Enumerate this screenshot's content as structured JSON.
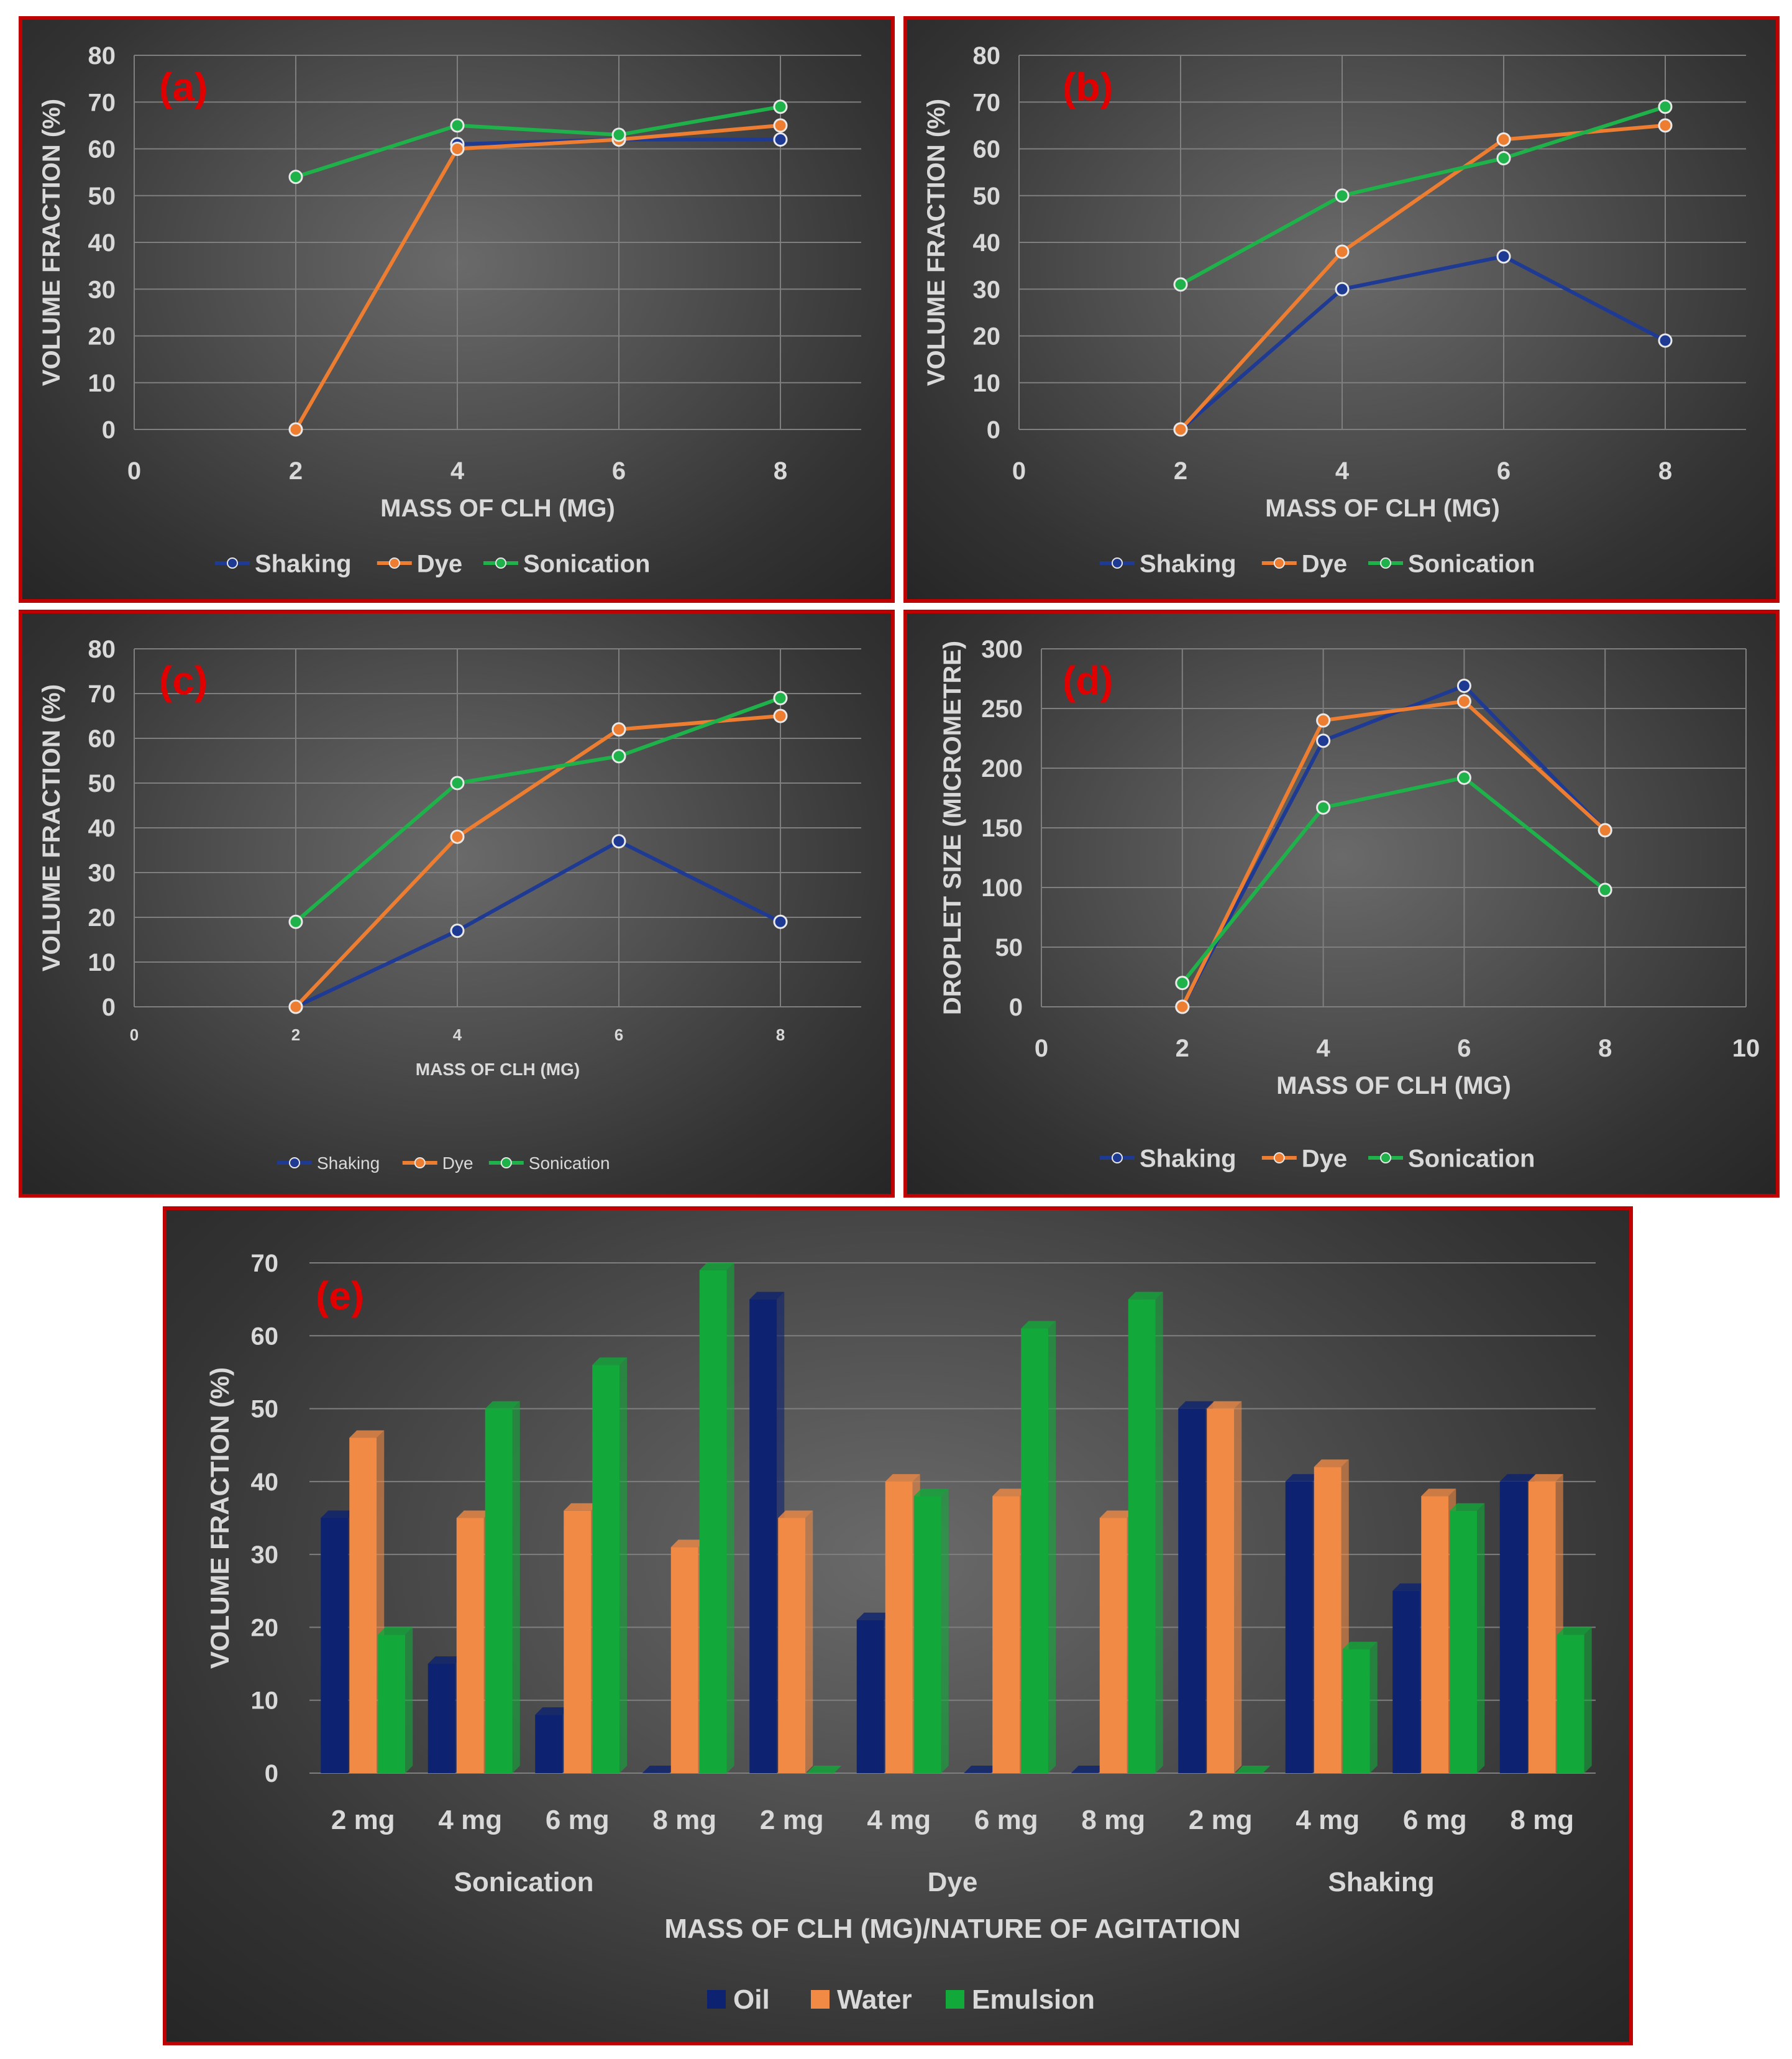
{
  "colors": {
    "shaking": "#1f3a93",
    "dye": "#ed7d31",
    "sonication": "#1fb14a",
    "oil": "#0d2270",
    "water": "#f08a45",
    "emulsion": "#12a83a",
    "panel_label": "#e00000",
    "text": "#d9d9d9",
    "grid": "#7f7f7f",
    "border": "#c00000"
  },
  "chart_data": [
    {
      "id": "a",
      "type": "line",
      "panel_label": "(a)",
      "xlabel": "MASS OF CLH (MG)",
      "ylabel": "VOLUME FRACTION (%)",
      "xlim": [
        0,
        9
      ],
      "ylim": [
        0,
        80
      ],
      "x_ticks": [
        0,
        2,
        4,
        6,
        8
      ],
      "y_ticks": [
        0,
        10,
        20,
        30,
        40,
        50,
        60,
        70,
        80
      ],
      "grid": true,
      "legend_position": "bottom",
      "series": [
        {
          "name": "Shaking",
          "color_key": "shaking",
          "x": [
            4,
            6,
            8
          ],
          "y": [
            61,
            62,
            62
          ]
        },
        {
          "name": "Dye",
          "color_key": "dye",
          "x": [
            2,
            4,
            6,
            8
          ],
          "y": [
            0,
            60,
            62,
            65
          ]
        },
        {
          "name": "Sonication",
          "color_key": "sonication",
          "x": [
            2,
            4,
            6,
            8
          ],
          "y": [
            54,
            65,
            63,
            69
          ]
        }
      ]
    },
    {
      "id": "b",
      "type": "line",
      "panel_label": "(b)",
      "xlabel": "MASS OF CLH (MG)",
      "ylabel": "VOLUME FRACTION (%)",
      "xlim": [
        0,
        9
      ],
      "ylim": [
        0,
        80
      ],
      "x_ticks": [
        0,
        2,
        4,
        6,
        8
      ],
      "y_ticks": [
        0,
        10,
        20,
        30,
        40,
        50,
        60,
        70,
        80
      ],
      "grid": true,
      "legend_position": "bottom",
      "series": [
        {
          "name": "Shaking",
          "color_key": "shaking",
          "x": [
            2,
            4,
            6,
            8
          ],
          "y": [
            0,
            30,
            37,
            19
          ]
        },
        {
          "name": "Dye",
          "color_key": "dye",
          "x": [
            2,
            4,
            6,
            8
          ],
          "y": [
            0,
            38,
            62,
            65
          ]
        },
        {
          "name": "Sonication",
          "color_key": "sonication",
          "x": [
            2,
            4,
            6,
            8
          ],
          "y": [
            31,
            50,
            58,
            69
          ]
        }
      ]
    },
    {
      "id": "c",
      "type": "line",
      "panel_label": "(c)",
      "xlabel": "MASS OF CLH (MG)",
      "ylabel": "VOLUME FRACTION (%)",
      "xlim": [
        0,
        9
      ],
      "ylim": [
        0,
        80
      ],
      "x_ticks": [
        0,
        2,
        4,
        6,
        8
      ],
      "y_ticks": [
        0,
        10,
        20,
        30,
        40,
        50,
        60,
        70,
        80
      ],
      "grid": true,
      "legend_position": "bottom",
      "series": [
        {
          "name": "Shaking",
          "color_key": "shaking",
          "x": [
            2,
            4,
            6,
            8
          ],
          "y": [
            0,
            17,
            37,
            19
          ]
        },
        {
          "name": "Dye",
          "color_key": "dye",
          "x": [
            2,
            4,
            6,
            8
          ],
          "y": [
            0,
            38,
            62,
            65
          ]
        },
        {
          "name": "Sonication",
          "color_key": "sonication",
          "x": [
            2,
            4,
            6,
            8
          ],
          "y": [
            19,
            50,
            56,
            69
          ]
        }
      ]
    },
    {
      "id": "d",
      "type": "line",
      "panel_label": "(d)",
      "xlabel": "MASS OF CLH (MG)",
      "ylabel": "DROPLET SIZE (MICROMETRE)",
      "xlim": [
        0,
        10
      ],
      "ylim": [
        0,
        300
      ],
      "x_ticks": [
        0,
        2,
        4,
        6,
        8,
        10
      ],
      "y_ticks": [
        0,
        50,
        100,
        150,
        200,
        250,
        300
      ],
      "grid": true,
      "legend_position": "bottom",
      "series": [
        {
          "name": "Shaking",
          "color_key": "shaking",
          "x": [
            2,
            4,
            6,
            8
          ],
          "y": [
            0,
            223,
            269,
            148
          ]
        },
        {
          "name": "Dye",
          "color_key": "dye",
          "x": [
            2,
            4,
            6,
            8
          ],
          "y": [
            0,
            240,
            256,
            148
          ]
        },
        {
          "name": "Sonication",
          "color_key": "sonication",
          "x": [
            2,
            4,
            6,
            8
          ],
          "y": [
            20,
            167,
            192,
            98
          ]
        }
      ]
    },
    {
      "id": "e",
      "type": "bar",
      "panel_label": "(e)",
      "xlabel": "MASS OF CLH (MG)/NATURE OF AGITATION",
      "ylabel": "VOLUME FRACTION (%)",
      "ylim": [
        0,
        70
      ],
      "y_ticks": [
        0,
        10,
        20,
        30,
        40,
        50,
        60,
        70
      ],
      "grid": true,
      "legend_position": "bottom",
      "categories": [
        "2 mg",
        "4 mg",
        "6 mg",
        "8 mg",
        "2 mg",
        "4 mg",
        "6 mg",
        "8 mg",
        "2 mg",
        "4 mg",
        "6 mg",
        "8 mg"
      ],
      "groups": [
        {
          "name": "Sonication",
          "span": [
            0,
            3
          ]
        },
        {
          "name": "Dye",
          "span": [
            4,
            7
          ]
        },
        {
          "name": "Shaking",
          "span": [
            8,
            11
          ]
        }
      ],
      "series": [
        {
          "name": "Oil",
          "color_key": "oil",
          "values": [
            35,
            15,
            8,
            0,
            65,
            21,
            0,
            0,
            50,
            40,
            25,
            40
          ]
        },
        {
          "name": "Water",
          "color_key": "water",
          "values": [
            46,
            35,
            36,
            31,
            35,
            40,
            38,
            35,
            50,
            42,
            38,
            40
          ]
        },
        {
          "name": "Emulsion",
          "color_key": "emulsion",
          "values": [
            19,
            50,
            56,
            69,
            0,
            38,
            61,
            65,
            0,
            17,
            36,
            19
          ]
        }
      ]
    }
  ]
}
